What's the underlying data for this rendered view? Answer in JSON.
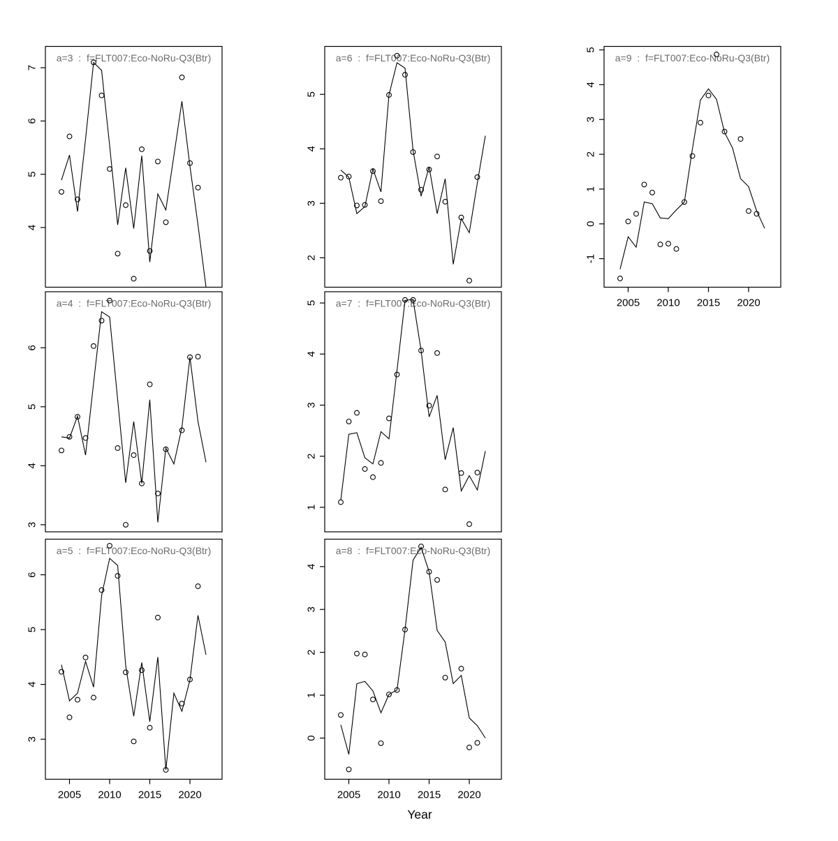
{
  "chart_data": {
    "type": "line",
    "description": "R base-graphics 3x3 panel grid (filled column-wise) of fitted line plus open-circle observation points per age class; x axis only on the bottom panel of each column",
    "xlabel": "Year",
    "x": [
      2004,
      2005,
      2006,
      2007,
      2008,
      2009,
      2010,
      2011,
      2012,
      2013,
      2014,
      2015,
      2016,
      2017,
      2018,
      2019,
      2020,
      2021,
      2022
    ],
    "xlim": [
      2002,
      2024
    ],
    "xticks": [
      2005,
      2010,
      2015,
      2020
    ],
    "grid": "off",
    "legend": "none",
    "marker": "open-circle",
    "line_color": "#000000",
    "point_color": "#000000",
    "title_color": "#6b6b6b",
    "tick_label_color": "#000000",
    "panels": [
      {
        "id": "a3",
        "title": "a=3  :  f=FLT007:Eco-NoRu-Q3(Btr)",
        "grid_row": 0,
        "grid_col": 0,
        "ylim": [
          2.88,
          7.4
        ],
        "yticks": [
          4,
          5,
          6,
          7
        ],
        "show_x_axis": false,
        "series": [
          {
            "name": "fitted-line",
            "type": "line",
            "values": [
              4.89,
              5.36,
              4.3,
              5.66,
              7.1,
              6.95,
              5.54,
              4.05,
              5.12,
              3.98,
              5.35,
              3.35,
              4.63,
              4.33,
              5.35,
              6.37,
              5.15,
              4.05,
              2.88
            ]
          },
          {
            "name": "observations",
            "type": "scatter",
            "points": [
              [
                2004,
                4.67
              ],
              [
                2005,
                5.71
              ],
              [
                2006,
                4.53
              ],
              [
                2008,
                7.1
              ],
              [
                2009,
                6.48
              ],
              [
                2010,
                5.1
              ],
              [
                2011,
                3.51
              ],
              [
                2012,
                4.42
              ],
              [
                2013,
                3.04
              ],
              [
                2014,
                5.47
              ],
              [
                2015,
                3.56
              ],
              [
                2016,
                5.24
              ],
              [
                2017,
                4.1
              ],
              [
                2019,
                6.82
              ],
              [
                2020,
                5.21
              ],
              [
                2021,
                4.75
              ]
            ]
          }
        ]
      },
      {
        "id": "a4",
        "title": "a=4  :  f=FLT007:Eco-NoRu-Q3(Btr)",
        "grid_row": 1,
        "grid_col": 0,
        "ylim": [
          2.88,
          6.95
        ],
        "yticks": [
          3,
          4,
          5,
          6
        ],
        "show_x_axis": false,
        "series": [
          {
            "name": "fitted-line",
            "type": "line",
            "values": [
              4.49,
              4.47,
              4.84,
              4.18,
              5.4,
              6.61,
              6.52,
              5.12,
              3.71,
              4.75,
              3.7,
              5.12,
              3.04,
              4.3,
              4.03,
              4.65,
              5.84,
              4.75,
              4.06
            ]
          },
          {
            "name": "observations",
            "type": "scatter",
            "points": [
              [
                2004,
                4.26
              ],
              [
                2005,
                4.49
              ],
              [
                2006,
                4.83
              ],
              [
                2007,
                4.47
              ],
              [
                2008,
                6.03
              ],
              [
                2009,
                6.46
              ],
              [
                2010,
                6.8
              ],
              [
                2011,
                4.3
              ],
              [
                2012,
                3.0
              ],
              [
                2013,
                4.18
              ],
              [
                2014,
                3.7
              ],
              [
                2015,
                5.38
              ],
              [
                2016,
                3.53
              ],
              [
                2017,
                4.28
              ],
              [
                2019,
                4.6
              ],
              [
                2020,
                5.84
              ],
              [
                2021,
                5.85
              ]
            ]
          }
        ]
      },
      {
        "id": "a5",
        "title": "a=5  :  f=FLT007:Eco-NoRu-Q3(Btr)",
        "grid_row": 2,
        "grid_col": 0,
        "ylim": [
          2.27,
          6.65
        ],
        "yticks": [
          3,
          4,
          5,
          6
        ],
        "show_x_axis": true,
        "series": [
          {
            "name": "fitted-line",
            "type": "line",
            "values": [
              4.36,
              3.7,
              3.84,
              4.42,
              3.95,
              5.62,
              6.3,
              6.17,
              4.34,
              3.42,
              4.4,
              3.32,
              4.5,
              2.44,
              3.84,
              3.51,
              4.08,
              5.26,
              4.54
            ]
          },
          {
            "name": "observations",
            "type": "scatter",
            "points": [
              [
                2004,
                4.23
              ],
              [
                2005,
                3.4
              ],
              [
                2006,
                3.72
              ],
              [
                2007,
                4.49
              ],
              [
                2008,
                3.76
              ],
              [
                2009,
                5.72
              ],
              [
                2010,
                6.53
              ],
              [
                2011,
                5.98
              ],
              [
                2012,
                4.22
              ],
              [
                2013,
                2.96
              ],
              [
                2014,
                4.26
              ],
              [
                2015,
                3.21
              ],
              [
                2016,
                5.22
              ],
              [
                2017,
                2.44
              ],
              [
                2019,
                3.65
              ],
              [
                2020,
                4.09
              ],
              [
                2021,
                5.79
              ]
            ]
          }
        ]
      },
      {
        "id": "a6",
        "title": "a=6  :  f=FLT007:Eco-NoRu-Q3(Btr)",
        "grid_row": 0,
        "grid_col": 1,
        "ylim": [
          1.46,
          5.88
        ],
        "yticks": [
          2,
          3,
          4,
          5
        ],
        "show_x_axis": false,
        "series": [
          {
            "name": "fitted-line",
            "type": "line",
            "values": [
              3.61,
              3.48,
              2.81,
              2.94,
              3.63,
              3.21,
              4.99,
              5.58,
              5.48,
              3.97,
              3.13,
              3.67,
              2.81,
              3.45,
              1.88,
              2.72,
              2.46,
              3.37,
              4.24
            ]
          },
          {
            "name": "observations",
            "type": "scatter",
            "points": [
              [
                2004,
                3.47
              ],
              [
                2005,
                3.49
              ],
              [
                2006,
                2.96
              ],
              [
                2007,
                2.97
              ],
              [
                2008,
                3.59
              ],
              [
                2009,
                3.04
              ],
              [
                2010,
                4.99
              ],
              [
                2011,
                5.71
              ],
              [
                2012,
                5.36
              ],
              [
                2013,
                3.94
              ],
              [
                2014,
                3.25
              ],
              [
                2015,
                3.62
              ],
              [
                2016,
                3.86
              ],
              [
                2017,
                3.03
              ],
              [
                2019,
                2.74
              ],
              [
                2020,
                1.58
              ],
              [
                2021,
                3.48
              ]
            ]
          }
        ]
      },
      {
        "id": "a7",
        "title": "a=7  :  f=FLT007:Eco-NoRu-Q3(Btr)",
        "grid_row": 1,
        "grid_col": 1,
        "ylim": [
          0.52,
          5.22
        ],
        "yticks": [
          1,
          2,
          3,
          4,
          5
        ],
        "show_x_axis": false,
        "series": [
          {
            "name": "fitted-line",
            "type": "line",
            "values": [
              1.14,
              2.43,
              2.46,
              1.97,
              1.85,
              2.48,
              2.34,
              3.68,
              5.05,
              5.07,
              4.07,
              2.77,
              3.19,
              1.93,
              2.56,
              1.32,
              1.62,
              1.34,
              2.1
            ]
          },
          {
            "name": "observations",
            "type": "scatter",
            "points": [
              [
                2004,
                1.1
              ],
              [
                2005,
                2.68
              ],
              [
                2006,
                2.85
              ],
              [
                2007,
                1.75
              ],
              [
                2008,
                1.59
              ],
              [
                2009,
                1.87
              ],
              [
                2010,
                2.74
              ],
              [
                2011,
                3.6
              ],
              [
                2012,
                5.06
              ],
              [
                2013,
                5.06
              ],
              [
                2014,
                4.07
              ],
              [
                2015,
                2.99
              ],
              [
                2016,
                4.02
              ],
              [
                2017,
                1.35
              ],
              [
                2019,
                1.67
              ],
              [
                2020,
                0.67
              ],
              [
                2021,
                1.68
              ]
            ]
          }
        ]
      },
      {
        "id": "a8",
        "title": "a=8  :  f=FLT007:Eco-NoRu-Q3(Btr)",
        "grid_row": 2,
        "grid_col": 1,
        "ylim": [
          -0.96,
          4.64
        ],
        "yticks": [
          0,
          1,
          2,
          3,
          4
        ],
        "show_x_axis": true,
        "series": [
          {
            "name": "fitted-line",
            "type": "line",
            "values": [
              0.31,
              -0.38,
              1.27,
              1.32,
              1.1,
              0.59,
              1.02,
              1.12,
              2.53,
              4.15,
              4.45,
              3.88,
              2.51,
              2.24,
              1.27,
              1.46,
              0.47,
              0.29,
              0.0
            ]
          },
          {
            "name": "observations",
            "type": "scatter",
            "points": [
              [
                2004,
                0.54
              ],
              [
                2005,
                -0.73
              ],
              [
                2006,
                1.97
              ],
              [
                2007,
                1.95
              ],
              [
                2008,
                0.9
              ],
              [
                2009,
                -0.12
              ],
              [
                2010,
                1.02
              ],
              [
                2011,
                1.12
              ],
              [
                2012,
                2.53
              ],
              [
                2014,
                4.47
              ],
              [
                2015,
                3.88
              ],
              [
                2016,
                3.69
              ],
              [
                2017,
                1.41
              ],
              [
                2019,
                1.62
              ],
              [
                2020,
                -0.22
              ],
              [
                2021,
                -0.11
              ]
            ]
          }
        ]
      },
      {
        "id": "a9",
        "title": "a=9  :  f=FLT007:Eco-NoRu-Q3(Btr)",
        "grid_row": 0,
        "grid_col": 2,
        "ylim": [
          -1.82,
          5.1
        ],
        "yticks": [
          -1,
          0,
          1,
          2,
          3,
          4,
          5
        ],
        "show_x_axis": true,
        "series": [
          {
            "name": "fitted-line",
            "type": "line",
            "values": [
              -1.3,
              -0.37,
              -0.67,
              0.63,
              0.58,
              0.17,
              0.15,
              0.4,
              0.63,
              2.15,
              3.56,
              3.88,
              3.58,
              2.63,
              2.18,
              1.3,
              1.07,
              0.37,
              -0.13
            ]
          },
          {
            "name": "observations",
            "type": "scatter",
            "points": [
              [
                2004,
                -1.57
              ],
              [
                2005,
                0.07
              ],
              [
                2006,
                0.29
              ],
              [
                2007,
                1.13
              ],
              [
                2008,
                0.9
              ],
              [
                2009,
                -0.59
              ],
              [
                2010,
                -0.57
              ],
              [
                2011,
                -0.72
              ],
              [
                2012,
                0.63
              ],
              [
                2013,
                1.95
              ],
              [
                2014,
                2.91
              ],
              [
                2015,
                3.69
              ],
              [
                2016,
                4.87
              ],
              [
                2017,
                2.65
              ],
              [
                2019,
                2.44
              ],
              [
                2020,
                0.37
              ],
              [
                2021,
                0.29
              ]
            ]
          }
        ]
      }
    ]
  }
}
